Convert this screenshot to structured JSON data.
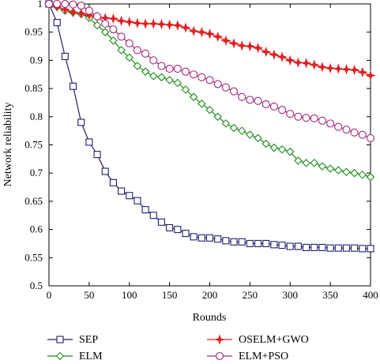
{
  "chart_data": {
    "type": "line",
    "title": "",
    "xlabel": "Rounds",
    "ylabel": "Network reliability",
    "xlim": [
      0,
      400
    ],
    "ylim": [
      0.5,
      1.0
    ],
    "xticks": [
      0,
      50,
      100,
      150,
      200,
      250,
      300,
      350,
      400
    ],
    "yticks": [
      0.5,
      0.55,
      0.6,
      0.65,
      0.7,
      0.75,
      0.8,
      0.85,
      0.9,
      0.95,
      1.0
    ],
    "ytick_labels": [
      "0.5",
      "0.55",
      "0.6",
      "0.65",
      "0.7",
      "0.75",
      "0.8",
      "0.85",
      "0.9",
      "0.95",
      "1"
    ],
    "grid": false,
    "legend_position": "bottom",
    "x": [
      0,
      10,
      20,
      30,
      40,
      50,
      60,
      70,
      80,
      90,
      100,
      110,
      120,
      130,
      140,
      150,
      160,
      170,
      180,
      190,
      200,
      210,
      220,
      230,
      240,
      250,
      260,
      270,
      280,
      290,
      300,
      310,
      320,
      330,
      340,
      350,
      360,
      370,
      380,
      390,
      400
    ],
    "series": [
      {
        "name": "SEP",
        "color": "#1f1f6e",
        "marker": "square",
        "values": [
          1.0,
          0.967,
          0.907,
          0.854,
          0.79,
          0.755,
          0.733,
          0.703,
          0.683,
          0.668,
          0.66,
          0.651,
          0.635,
          0.625,
          0.613,
          0.603,
          0.6,
          0.593,
          0.587,
          0.585,
          0.585,
          0.583,
          0.58,
          0.578,
          0.578,
          0.575,
          0.575,
          0.575,
          0.573,
          0.572,
          0.57,
          0.57,
          0.568,
          0.568,
          0.568,
          0.567,
          0.567,
          0.567,
          0.567,
          0.566,
          0.566
        ]
      },
      {
        "name": "ELM",
        "color": "#1e8c1e",
        "marker": "diamond",
        "values": [
          1.0,
          0.995,
          0.988,
          0.985,
          0.982,
          0.975,
          0.962,
          0.95,
          0.935,
          0.918,
          0.905,
          0.89,
          0.88,
          0.872,
          0.87,
          0.865,
          0.86,
          0.848,
          0.835,
          0.823,
          0.812,
          0.8,
          0.788,
          0.78,
          0.775,
          0.768,
          0.762,
          0.752,
          0.745,
          0.742,
          0.738,
          0.722,
          0.718,
          0.718,
          0.712,
          0.708,
          0.705,
          0.702,
          0.7,
          0.697,
          0.693
        ]
      },
      {
        "name": "OSELM+GWO",
        "color": "#e02020",
        "marker": "star",
        "values": [
          1.0,
          0.995,
          0.99,
          0.985,
          0.983,
          0.98,
          0.977,
          0.975,
          0.974,
          0.97,
          0.968,
          0.966,
          0.965,
          0.965,
          0.964,
          0.963,
          0.962,
          0.958,
          0.952,
          0.95,
          0.947,
          0.942,
          0.935,
          0.93,
          0.926,
          0.925,
          0.922,
          0.915,
          0.91,
          0.906,
          0.9,
          0.896,
          0.895,
          0.892,
          0.888,
          0.886,
          0.885,
          0.884,
          0.883,
          0.879,
          0.873
        ]
      },
      {
        "name": "ELM+PSO",
        "color": "#a0287a",
        "marker": "circle",
        "values": [
          1.0,
          1.0,
          1.0,
          0.999,
          0.997,
          0.988,
          0.978,
          0.965,
          0.955,
          0.942,
          0.93,
          0.918,
          0.912,
          0.9,
          0.89,
          0.885,
          0.885,
          0.88,
          0.875,
          0.87,
          0.865,
          0.858,
          0.852,
          0.845,
          0.835,
          0.83,
          0.828,
          0.822,
          0.818,
          0.812,
          0.805,
          0.8,
          0.798,
          0.797,
          0.793,
          0.788,
          0.782,
          0.777,
          0.772,
          0.768,
          0.762
        ]
      }
    ]
  }
}
